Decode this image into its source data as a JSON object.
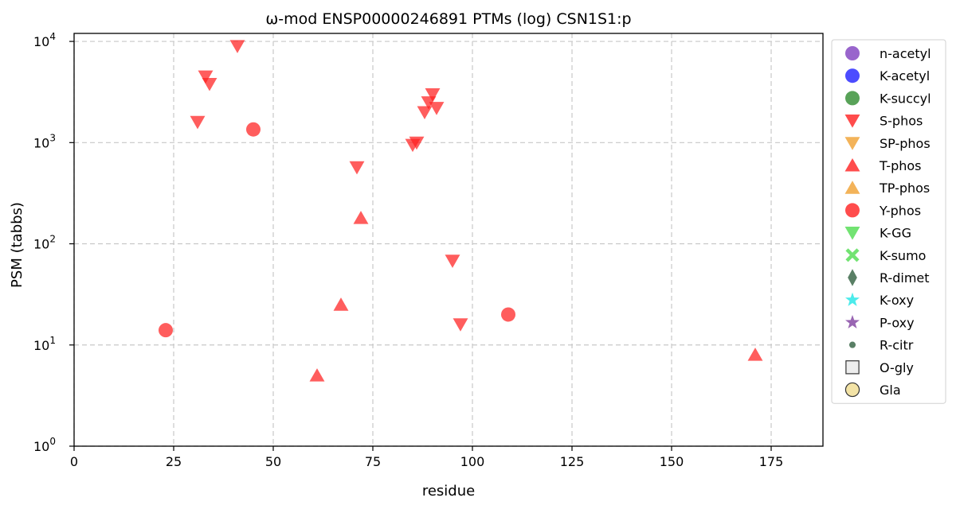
{
  "chart_data": {
    "type": "scatter",
    "title": "ω-mod ENSP00000246891 PTMs (log) CSN1S1:p",
    "xlabel": "residue",
    "ylabel": "PSM (tabbs)",
    "xlim": [
      0,
      188
    ],
    "ylim": [
      1,
      12000
    ],
    "yscale": "log",
    "grid": true,
    "legend_position": "right-outside",
    "x_ticks": [
      "0",
      "25",
      "50",
      "75",
      "100",
      "125",
      "150",
      "175"
    ],
    "y_ticks": [
      {
        "base": "10",
        "exp": "0"
      },
      {
        "base": "10",
        "exp": "1"
      },
      {
        "base": "10",
        "exp": "2"
      },
      {
        "base": "10",
        "exp": "3"
      },
      {
        "base": "10",
        "exp": "4"
      }
    ],
    "series": [
      {
        "name": "n-acetyl",
        "marker": "circle",
        "color": "#7f3fbf",
        "x": [],
        "y": []
      },
      {
        "name": "K-acetyl",
        "marker": "circle",
        "color": "#1f1fff",
        "x": [],
        "y": []
      },
      {
        "name": "K-succyl",
        "marker": "circle",
        "color": "#2e8b2e",
        "x": [],
        "y": []
      },
      {
        "name": "S-phos",
        "marker": "triangle-down",
        "color": "#ff1f1f",
        "x": [
          31,
          33,
          34,
          41,
          71,
          85,
          86,
          88,
          89,
          90,
          91,
          95,
          97
        ],
        "y": [
          1600,
          4500,
          3800,
          9000,
          570,
          950,
          1000,
          2000,
          2500,
          3000,
          2200,
          68,
          16
        ]
      },
      {
        "name": "SP-phos",
        "marker": "triangle-down",
        "color": "#f0a030",
        "x": [],
        "y": []
      },
      {
        "name": "T-phos",
        "marker": "triangle-up",
        "color": "#ff1f1f",
        "x": [
          61,
          67,
          72,
          171
        ],
        "y": [
          5,
          25,
          180,
          8
        ]
      },
      {
        "name": "TP-phos",
        "marker": "triangle-up",
        "color": "#f0a030",
        "x": [],
        "y": []
      },
      {
        "name": "Y-phos",
        "marker": "circle",
        "color": "#ff1f1f",
        "x": [
          23,
          45,
          109
        ],
        "y": [
          14,
          1350,
          20
        ]
      },
      {
        "name": "K-GG",
        "marker": "triangle-down",
        "color": "#4fdc4f",
        "x": [],
        "y": []
      },
      {
        "name": "K-sumo",
        "marker": "x",
        "color": "#4fdc4f",
        "x": [],
        "y": []
      },
      {
        "name": "R-dimet",
        "marker": "diamond",
        "color": "#2f5f3f",
        "x": [],
        "y": []
      },
      {
        "name": "K-oxy",
        "marker": "star",
        "color": "#1fe6e6",
        "x": [],
        "y": []
      },
      {
        "name": "P-oxy",
        "marker": "star",
        "color": "#7f3f9f",
        "x": [],
        "y": []
      },
      {
        "name": "R-citr",
        "marker": "small-circle",
        "color": "#2f5f3f",
        "x": [],
        "y": []
      },
      {
        "name": "O-gly",
        "marker": "square",
        "color": "#e8e8e8",
        "x": [],
        "y": []
      },
      {
        "name": "Gla",
        "marker": "circle-outline",
        "color": "#f0dc90",
        "x": [],
        "y": []
      }
    ]
  }
}
